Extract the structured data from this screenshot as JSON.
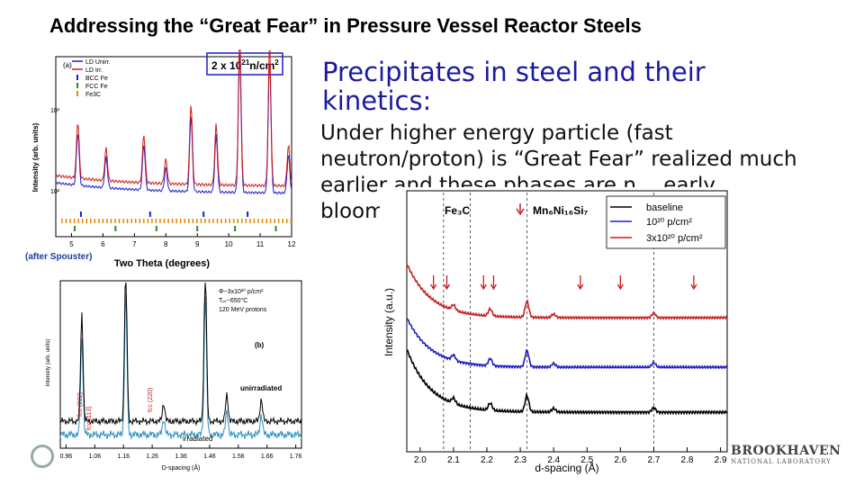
{
  "slide": {
    "title": "Addressing the “Great Fear” in Pressure Vessel Reactor Steels",
    "heading": "Precipitates in steel and their kinetics:",
    "body": "Under higher energy particle (fast neutron/proton) is “Great Fear” realized much earlier and these phases are n… early bloom…",
    "attribution": "(after Spouster)",
    "logo_main": "BROOKHAVEN",
    "logo_sub": "NATIONAL LABORATORY"
  },
  "colors": {
    "heading": "#1a1aa0",
    "unirr": "#1b1bd0",
    "irr": "#d01b1b",
    "baseline": "#000000"
  },
  "plot_a": {
    "panel_label": "(a)",
    "ylabel": "Intensity (arb. units)",
    "xlabel": "Two Theta (degrees)",
    "fluence": "2 x 10",
    "fluence_exp": "21",
    "fluence_unit": "n/cm",
    "fluence_unit_exp": "2",
    "legend": [
      "LD Unirr.",
      "LD Irr.",
      "BCC Fe",
      "FCC Fe",
      "Fe3C"
    ],
    "x_ticks": [
      "5",
      "6",
      "7",
      "8",
      "9",
      "10",
      "11",
      "12"
    ],
    "y_ticks": [
      "10³",
      "10²"
    ]
  },
  "plot_b": {
    "panel_label": "(b)",
    "ylabel": "Intensity (arb. units)",
    "xlabel": "D-spacing (Å)",
    "info": [
      "Φ~3x10²⁰ p/cm²",
      "Tᵢᵣᵣ~650°C",
      "120 MeV protons"
    ],
    "label_unirr": "unirradiated",
    "label_irr": "irradiated",
    "peak_labels": [
      "fcc (222)",
      "fcc (113)",
      "fcc (220)"
    ],
    "x_ticks": [
      "0.96",
      "1.06",
      "1.16",
      "1.26",
      "1.36",
      "1.46",
      "1.56",
      "1.66",
      "1.76"
    ]
  },
  "plot_c": {
    "ylabel": "Intensity (a.u.)",
    "xlabel": "d-spacing (Å)",
    "phase1": "Fe₃C",
    "phase2": "Mn₆Ni₁₆Si₇",
    "legend": [
      "baseline",
      "10²⁰ p/cm²",
      "3x10²⁰ p/cm²"
    ],
    "x_ticks": [
      "2.0",
      "2.1",
      "2.2",
      "2.3",
      "2.4",
      "2.5",
      "2.6",
      "2.7",
      "2.8",
      "2.9"
    ]
  }
}
